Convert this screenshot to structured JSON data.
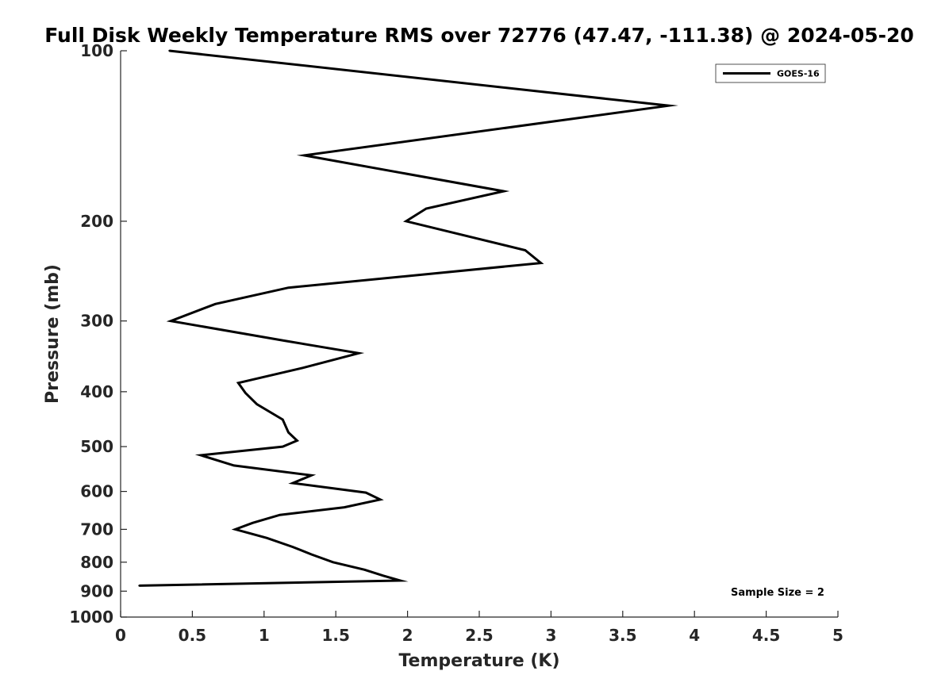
{
  "chart_data": {
    "type": "line",
    "title": "Full Disk Weekly Temperature RMS over 72776 (47.47, -111.38) @ 2024-05-20",
    "xlabel": "Temperature (K)",
    "ylabel": "Pressure (mb)",
    "xlim": [
      0,
      5
    ],
    "ylim": [
      1000,
      100
    ],
    "y_scale": "log",
    "y_direction": "reversed",
    "grid": false,
    "legend_position": "top-right",
    "x_ticks": [
      {
        "value": 0,
        "label": "0"
      },
      {
        "value": 0.5,
        "label": "0.5"
      },
      {
        "value": 1,
        "label": "1"
      },
      {
        "value": 1.5,
        "label": "1.5"
      },
      {
        "value": 2,
        "label": "2"
      },
      {
        "value": 2.5,
        "label": "2.5"
      },
      {
        "value": 3,
        "label": "3"
      },
      {
        "value": 3.5,
        "label": "3.5"
      },
      {
        "value": 4,
        "label": "4"
      },
      {
        "value": 4.5,
        "label": "4.5"
      },
      {
        "value": 5,
        "label": "5"
      }
    ],
    "y_ticks": [
      {
        "value": 100,
        "label": "100"
      },
      {
        "value": 200,
        "label": "200"
      },
      {
        "value": 300,
        "label": "300"
      },
      {
        "value": 400,
        "label": "400"
      },
      {
        "value": 500,
        "label": "500"
      },
      {
        "value": 600,
        "label": "600"
      },
      {
        "value": 700,
        "label": "700"
      },
      {
        "value": 800,
        "label": "800"
      },
      {
        "value": 900,
        "label": "900"
      },
      {
        "value": 1000,
        "label": "1000"
      }
    ],
    "series": [
      {
        "name": "GOES-16",
        "color": "#000000",
        "points": [
          {
            "t": 0.34,
            "p": 100
          },
          {
            "t": 3.82,
            "p": 125
          },
          {
            "t": 1.28,
            "p": 153
          },
          {
            "t": 2.67,
            "p": 177
          },
          {
            "t": 2.13,
            "p": 190
          },
          {
            "t": 1.99,
            "p": 200
          },
          {
            "t": 2.82,
            "p": 225
          },
          {
            "t": 2.93,
            "p": 237
          },
          {
            "t": 1.17,
            "p": 262
          },
          {
            "t": 0.66,
            "p": 280
          },
          {
            "t": 0.35,
            "p": 300
          },
          {
            "t": 1.14,
            "p": 325
          },
          {
            "t": 1.66,
            "p": 342
          },
          {
            "t": 1.27,
            "p": 363
          },
          {
            "t": 0.82,
            "p": 386
          },
          {
            "t": 0.87,
            "p": 402
          },
          {
            "t": 0.95,
            "p": 421
          },
          {
            "t": 1.13,
            "p": 448
          },
          {
            "t": 1.17,
            "p": 472
          },
          {
            "t": 1.23,
            "p": 488
          },
          {
            "t": 1.13,
            "p": 500
          },
          {
            "t": 0.56,
            "p": 518
          },
          {
            "t": 0.79,
            "p": 540
          },
          {
            "t": 1.33,
            "p": 562
          },
          {
            "t": 1.2,
            "p": 580
          },
          {
            "t": 1.71,
            "p": 603
          },
          {
            "t": 1.81,
            "p": 620
          },
          {
            "t": 1.56,
            "p": 640
          },
          {
            "t": 1.11,
            "p": 660
          },
          {
            "t": 0.92,
            "p": 682
          },
          {
            "t": 0.8,
            "p": 700
          },
          {
            "t": 1.02,
            "p": 725
          },
          {
            "t": 1.2,
            "p": 752
          },
          {
            "t": 1.33,
            "p": 775
          },
          {
            "t": 1.48,
            "p": 800
          },
          {
            "t": 1.7,
            "p": 825
          },
          {
            "t": 1.83,
            "p": 845
          },
          {
            "t": 1.95,
            "p": 862
          },
          {
            "t": 0.13,
            "p": 880
          }
        ]
      }
    ],
    "annotations": [
      {
        "text": "Sample Size = 2",
        "position": "bottom-right"
      }
    ]
  }
}
